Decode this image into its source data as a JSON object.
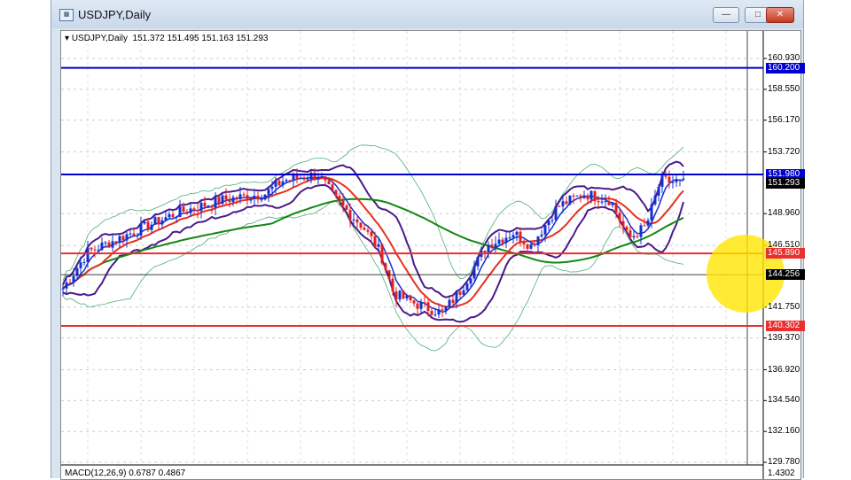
{
  "window": {
    "title": "USDJPY,Daily",
    "buttons": {
      "minimize": "—",
      "maximize": "□",
      "close": "✕"
    }
  },
  "chart": {
    "symbol_label": "USDJPY,Daily",
    "ohlc": "151.372 151.495 151.163 151.293",
    "price_scale": [
      "160.930",
      "158.550",
      "156.170",
      "153.720",
      "148.960",
      "146.510",
      "141.750",
      "139.370",
      "136.920",
      "134.540",
      "132.160",
      "129.780"
    ],
    "levels": [
      {
        "label": "160.200",
        "color": "#0000cc"
      },
      {
        "label": "151.980",
        "color": "#0000cc"
      },
      {
        "label": "145.890",
        "color": "#e83030"
      },
      {
        "label": "140.302",
        "color": "#e83030"
      }
    ],
    "current_price": "151.293",
    "crosshair_price": "144.256",
    "macd_label": "MACD(12,26,9) 0.6787 0.4867",
    "macd_scale": "1.4302"
  }
}
